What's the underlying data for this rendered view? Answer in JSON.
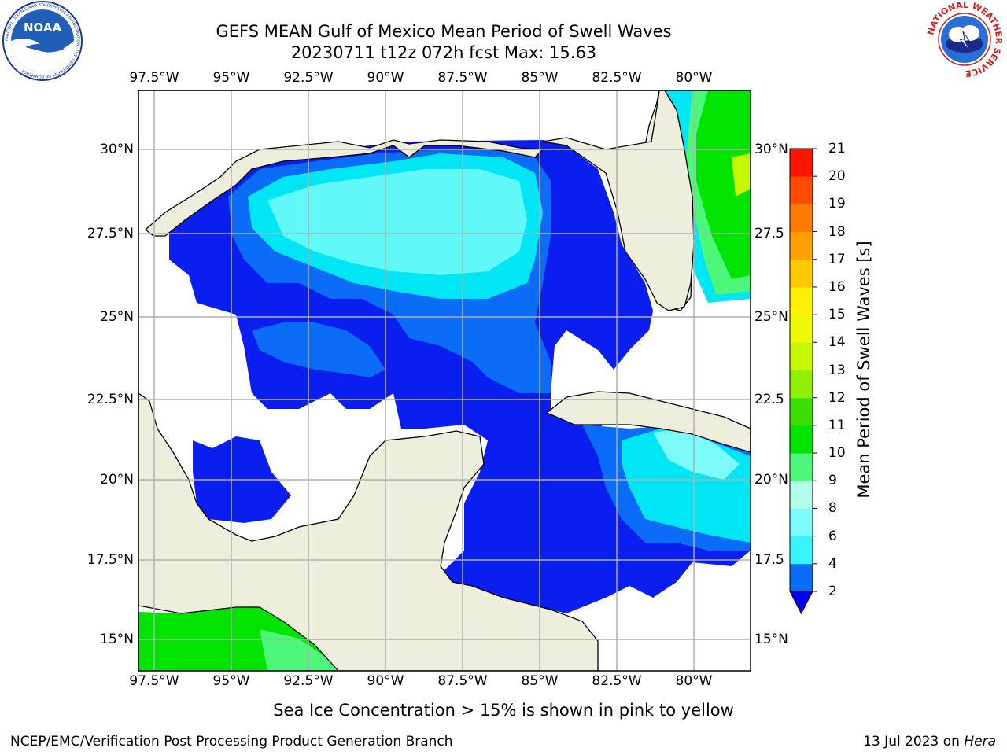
{
  "title": {
    "line1": "GEFS MEAN Gulf of Mexico Mean Period of Swell Waves",
    "line2": "20230711 t12z 072h fcst   Max: 15.63"
  },
  "logos": {
    "noaa_text": "NOAA",
    "noaa_ring": "NATIONAL OCEANIC AND ATMOSPHERIC ADMINISTRATION · U.S. DEPARTMENT OF COMMERCE",
    "nws_ring": "NATIONAL WEATHER SERVICE"
  },
  "axes": {
    "lon_labels": [
      "97.5°W",
      "95°W",
      "92.5°W",
      "90°W",
      "87.5°W",
      "85°W",
      "82.5°W",
      "80°W"
    ],
    "lat_labels": [
      "30°N",
      "27.5°N",
      "25°N",
      "22.5°N",
      "20°N",
      "17.5°N",
      "15°N"
    ],
    "lat_labels_right": [
      "30°N",
      "27.5",
      "25°N",
      "22.5",
      "20°N",
      "17.5",
      "15°N"
    ],
    "lon_range": [
      -98,
      -78.25
    ],
    "lat_range": [
      14,
      31.5
    ]
  },
  "colorbar": {
    "label": "Mean Period of Swell Waves [s]",
    "ticks": [
      "2",
      "4",
      "6",
      "8",
      "9",
      "10",
      "11",
      "12",
      "13",
      "14",
      "15",
      "16",
      "17",
      "18",
      "19",
      "20",
      "21"
    ],
    "colors": [
      "#0a6cf7",
      "#00d7f4",
      "#38f3fb",
      "#7dfbfb",
      "#b4fde8",
      "#4cf77a",
      "#00e400",
      "#3ce000",
      "#8ff000",
      "#c8f800",
      "#ecfb00",
      "#fff000",
      "#ffc800",
      "#ffa000",
      "#ff7a00",
      "#ff4c00",
      "#ff1400"
    ],
    "extend_color": "#0000f0"
  },
  "map_colors": {
    "land": "#eeeedd",
    "ocean_missing": "#ffffff",
    "deep_blue": "#0a1ef0",
    "mid_blue": "#0a6cf7",
    "cyan": "#00e6f4",
    "light_cyan": "#60f8f8",
    "green": "#00e400",
    "light_green": "#4cf77a",
    "yellow_green": "#c8f800"
  },
  "note": "Sea Ice Concentration > 15% is shown in pink to yellow",
  "footer": {
    "left": "NCEP/EMC/Verification Post Processing Product Generation Branch",
    "right_date": "13 Jul 2023 on ",
    "right_host": "Hera"
  }
}
